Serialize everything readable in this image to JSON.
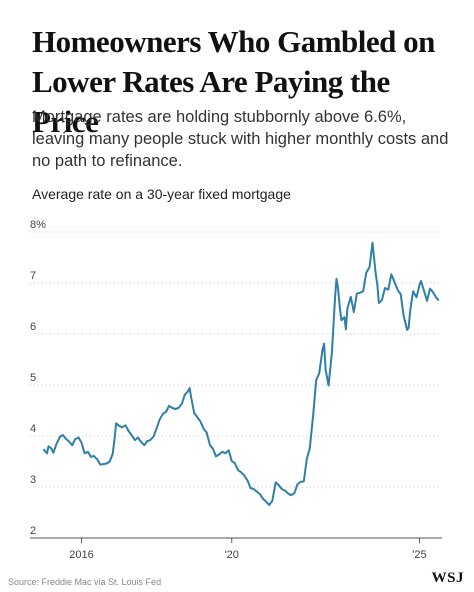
{
  "header": {
    "title_line1": "Homeowners Who Gambled on",
    "title_line2": "Lower Rates Are Paying the Price",
    "subtitle": "Mortgage rates are holding stubbornly above 6.6%, leaving many people stuck with higher monthly costs and no path to refinance."
  },
  "footer": {
    "source": "Source: Freddie Mac via St. Louis Fed",
    "logo": "WSJ"
  },
  "colors": {
    "line": "#2f7fa6",
    "grid": "#c9c9c9",
    "axis": "#555555"
  },
  "chart_data": {
    "type": "line",
    "title": "Average rate on a 30-year fixed mortgage",
    "xlabel": "",
    "ylabel": "",
    "ylim": [
      2,
      8
    ],
    "xlim": [
      2015.0,
      2025.6
    ],
    "y_ticks": [
      {
        "value": 8,
        "label": "8%"
      },
      {
        "value": 7,
        "label": "7"
      },
      {
        "value": 6,
        "label": "6"
      },
      {
        "value": 5,
        "label": "5"
      },
      {
        "value": 4,
        "label": "4"
      },
      {
        "value": 3,
        "label": "3"
      },
      {
        "value": 2,
        "label": "2"
      }
    ],
    "x_ticks": [
      {
        "value": 2016,
        "label": "2016"
      },
      {
        "value": 2020,
        "label": "'20"
      },
      {
        "value": 2025,
        "label": "'25"
      }
    ],
    "grid": "horizontal dotted",
    "legend": "none",
    "series": [
      {
        "x": [
          2015.0,
          2015.08,
          2015.12,
          2015.2,
          2015.25,
          2015.33,
          2015.42,
          2015.5,
          2015.58,
          2015.67,
          2015.75,
          2015.83,
          2015.92,
          2016.0,
          2016.08,
          2016.17,
          2016.25,
          2016.33,
          2016.42,
          2016.5,
          2016.58,
          2016.67,
          2016.75,
          2016.83,
          2016.88,
          2016.92,
          2017.0,
          2017.08,
          2017.17,
          2017.25,
          2017.33,
          2017.42,
          2017.5,
          2017.58,
          2017.67,
          2017.75,
          2017.83,
          2017.92,
          2018.0,
          2018.08,
          2018.17,
          2018.25,
          2018.33,
          2018.42,
          2018.5,
          2018.58,
          2018.67,
          2018.75,
          2018.83,
          2018.88,
          2018.92,
          2019.0,
          2019.08,
          2019.17,
          2019.25,
          2019.33,
          2019.42,
          2019.5,
          2019.58,
          2019.67,
          2019.75,
          2019.83,
          2019.92,
          2020.0,
          2020.08,
          2020.17,
          2020.25,
          2020.33,
          2020.42,
          2020.5,
          2020.58,
          2020.67,
          2020.75,
          2020.83,
          2020.92,
          2021.0,
          2021.08,
          2021.17,
          2021.25,
          2021.33,
          2021.42,
          2021.5,
          2021.58,
          2021.67,
          2021.75,
          2021.83,
          2021.92,
          2022.0,
          2022.08,
          2022.17,
          2022.25,
          2022.33,
          2022.42,
          2022.46,
          2022.5,
          2022.58,
          2022.67,
          2022.75,
          2022.79,
          2022.83,
          2022.88,
          2022.92,
          2023.0,
          2023.04,
          2023.08,
          2023.17,
          2023.25,
          2023.33,
          2023.42,
          2023.5,
          2023.58,
          2023.67,
          2023.75,
          2023.79,
          2023.83,
          2023.88,
          2023.92,
          2024.0,
          2024.08,
          2024.17,
          2024.25,
          2024.33,
          2024.42,
          2024.5,
          2024.58,
          2024.67,
          2024.71,
          2024.75,
          2024.83,
          2024.92,
          2025.0,
          2025.04,
          2025.12,
          2025.2,
          2025.28,
          2025.36,
          2025.44,
          2025.5
        ],
        "y": [
          3.73,
          3.66,
          3.8,
          3.75,
          3.67,
          3.84,
          3.98,
          4.02,
          3.95,
          3.89,
          3.82,
          3.94,
          3.97,
          3.87,
          3.66,
          3.69,
          3.59,
          3.61,
          3.54,
          3.44,
          3.45,
          3.46,
          3.5,
          3.65,
          3.95,
          4.25,
          4.2,
          4.17,
          4.21,
          4.1,
          4.02,
          3.92,
          3.97,
          3.89,
          3.82,
          3.9,
          3.92,
          3.99,
          4.15,
          4.32,
          4.44,
          4.47,
          4.59,
          4.55,
          4.53,
          4.55,
          4.63,
          4.81,
          4.87,
          4.94,
          4.75,
          4.45,
          4.37,
          4.28,
          4.14,
          4.07,
          3.82,
          3.75,
          3.6,
          3.64,
          3.69,
          3.66,
          3.72,
          3.51,
          3.47,
          3.33,
          3.29,
          3.23,
          3.13,
          2.98,
          2.96,
          2.91,
          2.86,
          2.77,
          2.71,
          2.65,
          2.73,
          3.09,
          3.04,
          2.96,
          2.93,
          2.87,
          2.84,
          2.88,
          3.05,
          3.1,
          3.11,
          3.55,
          3.76,
          4.42,
          5.1,
          5.23,
          5.7,
          5.81,
          5.3,
          4.99,
          5.66,
          6.7,
          7.08,
          6.9,
          6.5,
          6.27,
          6.33,
          6.09,
          6.5,
          6.73,
          6.43,
          6.79,
          6.81,
          6.84,
          7.2,
          7.31,
          7.79,
          7.5,
          7.22,
          6.95,
          6.61,
          6.66,
          6.9,
          6.87,
          7.17,
          7.03,
          6.86,
          6.78,
          6.35,
          6.08,
          6.12,
          6.44,
          6.84,
          6.72,
          6.96,
          7.04,
          6.85,
          6.65,
          6.89,
          6.82,
          6.72,
          6.67
        ]
      }
    ]
  }
}
